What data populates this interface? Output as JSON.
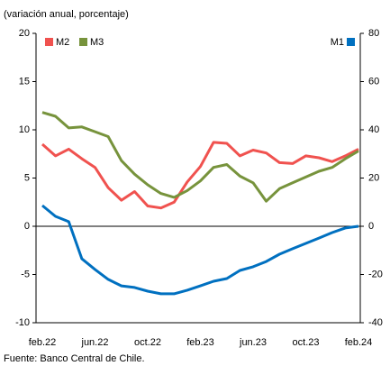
{
  "chart_data": {
    "type": "line",
    "subtitle": "(variación anual, porcentaje)",
    "source": "Fuente: Banco Central de Chile.",
    "categories": [
      "feb.22",
      null,
      null,
      null,
      "jun.22",
      null,
      null,
      null,
      "oct.22",
      null,
      null,
      null,
      "feb.23",
      null,
      null,
      null,
      "jun.23",
      null,
      null,
      null,
      "oct.23",
      null,
      null,
      null,
      "feb.24"
    ],
    "series": [
      {
        "name": "M2",
        "color": "#f0524f",
        "values": [
          8.5,
          7.3,
          8.0,
          7.0,
          6.1,
          4.0,
          2.7,
          3.6,
          2.1,
          1.9,
          2.5,
          4.6,
          6.2,
          8.7,
          8.6,
          7.3,
          7.9,
          7.6,
          6.6,
          6.5,
          7.3,
          7.1,
          6.7,
          7.3,
          8.0
        ]
      },
      {
        "name": "M3",
        "color": "#77933c",
        "values": [
          11.8,
          11.4,
          10.2,
          10.3,
          9.8,
          9.3,
          6.8,
          5.4,
          4.3,
          3.4,
          3.0,
          3.7,
          4.7,
          6.1,
          6.4,
          5.2,
          4.5,
          2.6,
          3.9,
          4.5,
          5.1,
          5.7,
          6.1,
          7.0,
          7.8
        ]
      },
      {
        "name": "M1",
        "color": "#0070c0",
        "axis": "y2",
        "values": [
          8.6,
          4.1,
          1.9,
          -13.5,
          -17.9,
          -22.0,
          -24.7,
          -25.4,
          -26.9,
          -28.0,
          -28.0,
          -26.5,
          -24.7,
          -22.8,
          -21.7,
          -18.3,
          -16.8,
          -14.6,
          -11.6,
          -9.3,
          -7.1,
          -4.9,
          -2.6,
          -0.7,
          0
        ]
      }
    ],
    "ylim": [
      -10,
      20
    ],
    "yticks": [
      -10,
      -5,
      0,
      5,
      10,
      15,
      20
    ],
    "y2lim": [
      -40,
      80
    ],
    "y2ticks": [
      -40,
      -20,
      0,
      20,
      40,
      60,
      80
    ]
  }
}
